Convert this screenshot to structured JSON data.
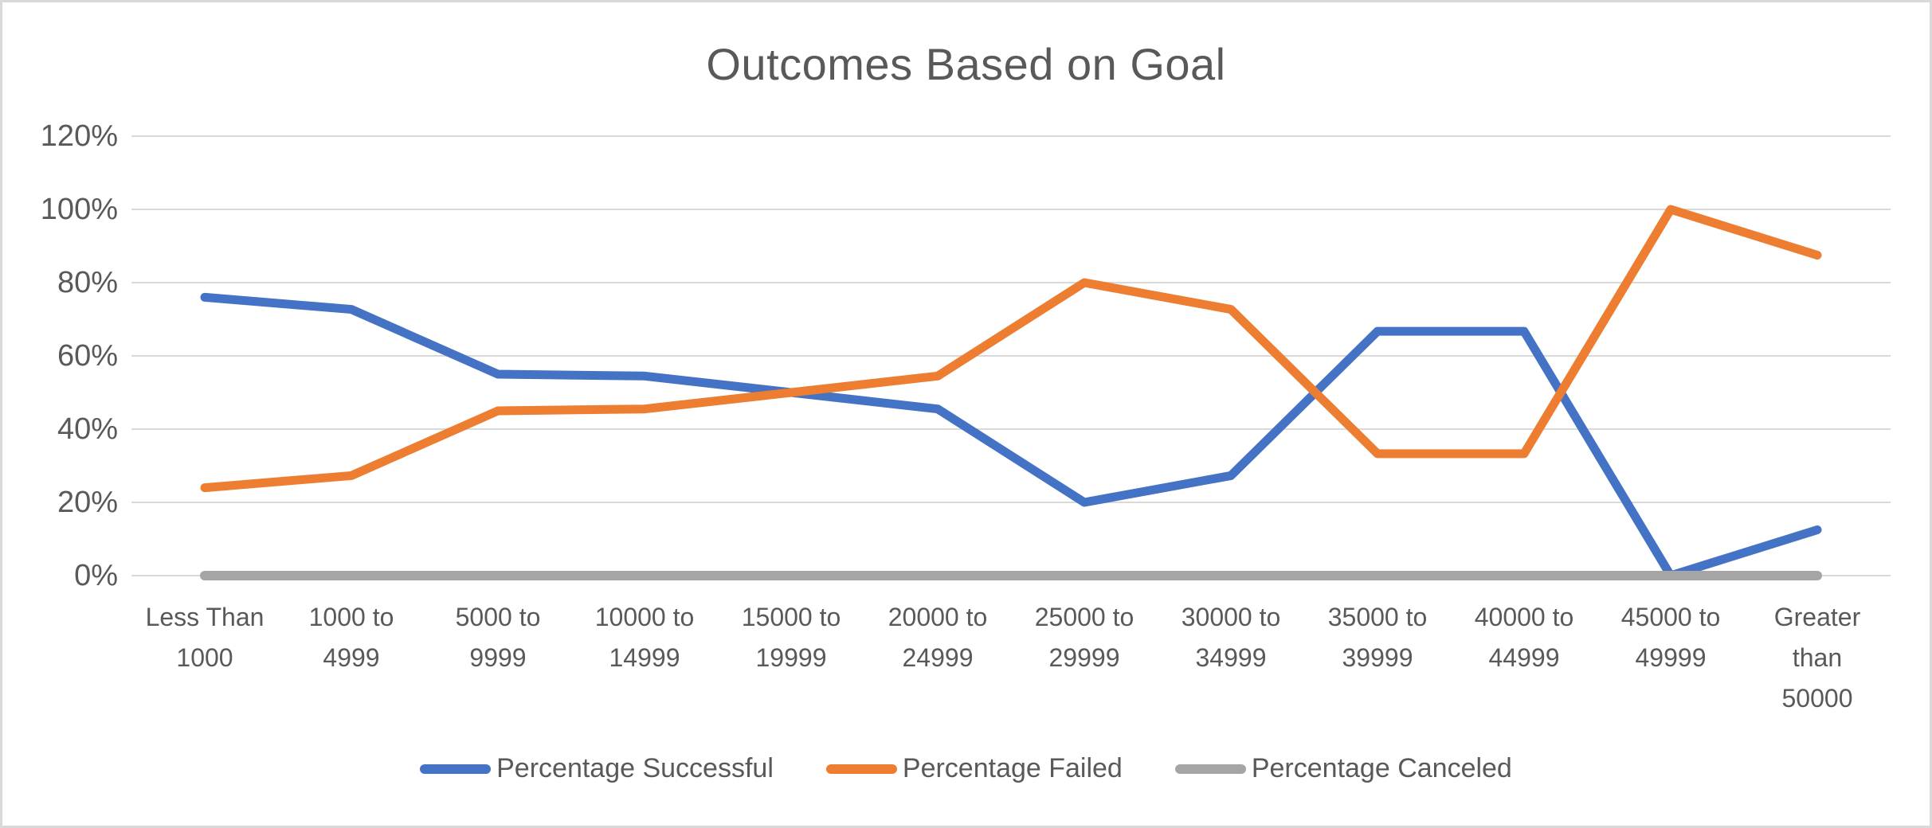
{
  "title": "Outcomes Based on Goal",
  "colors": {
    "background": "#FFFFFF",
    "frame_border": "#D9D9D9",
    "gridline": "#D9D9D9",
    "text": "#595959",
    "series_successful": "#4472C4",
    "series_failed": "#ED7D31",
    "series_canceled": "#A5A5A5"
  },
  "legend": {
    "position": "bottom",
    "items": [
      "Percentage Successful",
      "Percentage Failed",
      "Percentage Canceled"
    ]
  },
  "chart_data": {
    "type": "line",
    "title": "Outcomes Based on Goal",
    "xlabel": "",
    "ylabel": "",
    "ylim": [
      0,
      120
    ],
    "grid": true,
    "legend_position": "bottom",
    "y_ticks": [
      "0%",
      "20%",
      "40%",
      "60%",
      "80%",
      "100%",
      "120%"
    ],
    "y_tick_step_percent": 20,
    "categories": [
      [
        "Less Than",
        "1000"
      ],
      [
        "1000 to",
        "4999"
      ],
      [
        "5000 to",
        "9999"
      ],
      [
        "10000 to",
        "14999"
      ],
      [
        "15000 to",
        "19999"
      ],
      [
        "20000 to",
        "24999"
      ],
      [
        "25000 to",
        "29999"
      ],
      [
        "30000 to",
        "34999"
      ],
      [
        "35000 to",
        "39999"
      ],
      [
        "40000 to",
        "44999"
      ],
      [
        "45000 to",
        "49999"
      ],
      [
        "Greater",
        "than",
        "50000"
      ]
    ],
    "series": [
      {
        "name": "Percentage Successful",
        "color": "#4472C4",
        "values": [
          76,
          72.7,
          55,
          54.5,
          50,
          45.5,
          20,
          27.3,
          66.7,
          66.7,
          0,
          12.5
        ]
      },
      {
        "name": "Percentage Failed",
        "color": "#ED7D31",
        "values": [
          24,
          27.3,
          45,
          45.5,
          50,
          54.5,
          80,
          72.7,
          33.3,
          33.3,
          100,
          87.5
        ]
      },
      {
        "name": "Percentage Canceled",
        "color": "#A5A5A5",
        "values": [
          0,
          0,
          0,
          0,
          0,
          0,
          0,
          0,
          0,
          0,
          0,
          0
        ]
      }
    ]
  }
}
